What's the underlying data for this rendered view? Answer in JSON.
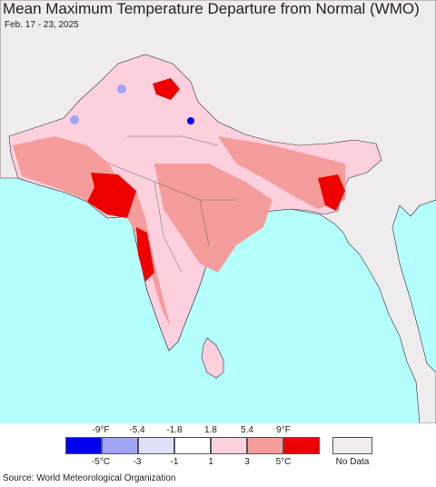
{
  "header": {
    "title": "Mean Maximum Temperature Departure from Normal (WMO)",
    "dates": "Feb. 17 - 23, 2025"
  },
  "legend": {
    "f_ticks": [
      "-9°F",
      "-5.4",
      "-1.8",
      "1.8",
      "5.4",
      "9°F"
    ],
    "c_ticks": [
      "-5°C",
      "-3",
      "-1",
      "1",
      "3",
      "5°C"
    ],
    "colors": [
      "#0000ee",
      "#a0a4f4",
      "#dfe0f8",
      "#ffffff",
      "#fdd0de",
      "#f59c9c",
      "#ee0000"
    ],
    "no_data_color": "#efecee",
    "no_data_label": "No Data"
  },
  "map_colors": {
    "ocean": "#b4fefe",
    "land_nodata": "#efecee",
    "border": "#222222"
  },
  "footer": {
    "source": "Source: World Meteorological Organization"
  }
}
